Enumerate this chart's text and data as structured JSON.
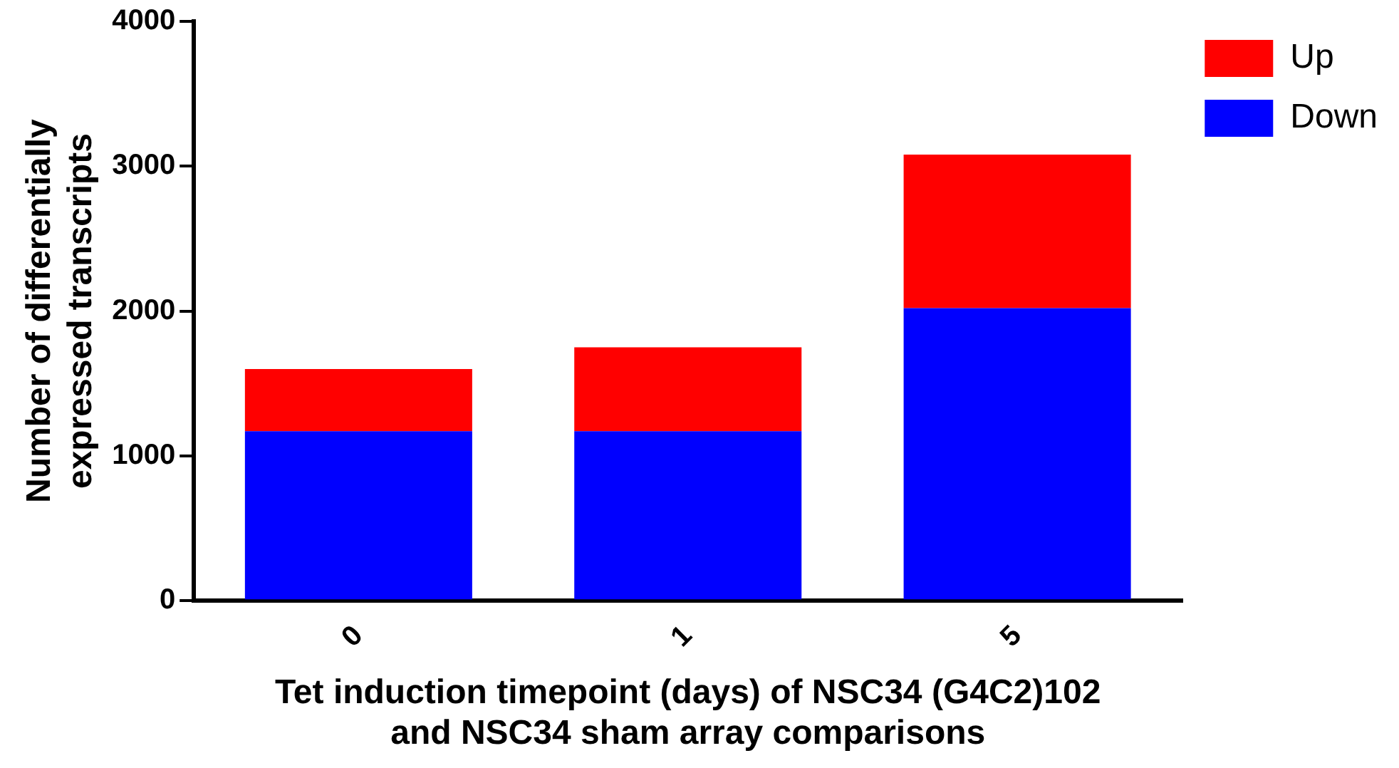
{
  "chart_data": {
    "type": "bar",
    "stacked": true,
    "xlabel": "Tet induction timepoint (days) of NSC34 (G4C2)102\nand NSC34 sham array comparisons",
    "ylabel": "Number of differentially\nexpressed transcripts",
    "categories": [
      "0",
      "1",
      "5"
    ],
    "series": [
      {
        "name": "Down",
        "color": "#0000ff",
        "values": [
          1170,
          1170,
          2020
        ]
      },
      {
        "name": "Up",
        "color": "#ff0000",
        "values": [
          430,
          580,
          1060
        ]
      }
    ],
    "ylim": [
      0,
      4000
    ],
    "yticks": [
      0,
      1000,
      2000,
      3000,
      4000
    ],
    "grid": false,
    "legend": "top right"
  }
}
